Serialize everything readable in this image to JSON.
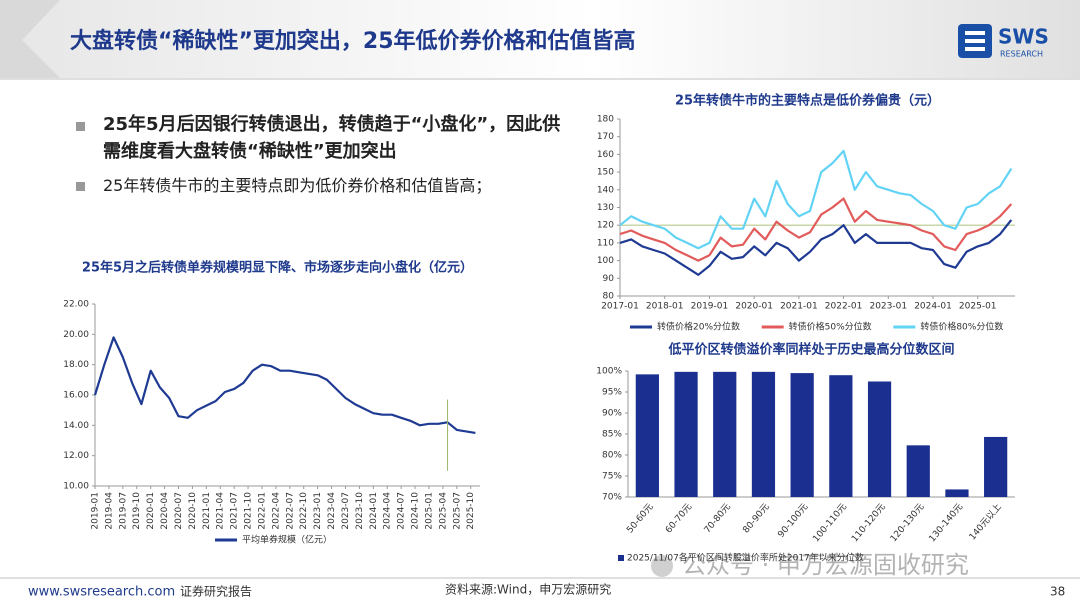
{
  "header": {
    "title": "大盘转债“稀缺性”更加突出，25年低价券价格和估值皆高",
    "logo": {
      "name": "SWS",
      "sub": "RESEARCH"
    }
  },
  "bullets": [
    "25年5月后因银行转债退出，转债趋于“小盘化”，因此供需维度看大盘转债“稀缺性”更加突出",
    "25年转债牛市的主要特点即为低价券价格和估值皆高；"
  ],
  "footer": {
    "site": "www.swsresearch.com",
    "kind": "证券研究报告",
    "source": "资料来源:Wind，申万宏源研究",
    "page": "38"
  },
  "watermark": "公众号 · 申万宏源固收研究",
  "chart_data": [
    {
      "type": "line",
      "title": "25年5月之后转债单券规模明显下降、市场逐步走向小盘化（亿元）",
      "x": [
        "2019-01",
        "2019-03",
        "2019-05",
        "2019-07",
        "2019-09",
        "2019-11",
        "2020-01",
        "2020-03",
        "2020-05",
        "2020-07",
        "2020-09",
        "2020-11",
        "2021-01",
        "2021-03",
        "2021-05",
        "2021-07",
        "2021-09",
        "2021-11",
        "2022-01",
        "2022-03",
        "2022-05",
        "2022-07",
        "2022-09",
        "2022-11",
        "2023-01",
        "2023-03",
        "2023-05",
        "2023-07",
        "2023-09",
        "2023-11",
        "2024-01",
        "2024-03",
        "2024-05",
        "2024-07",
        "2024-09",
        "2024-11",
        "2025-01",
        "2025-03",
        "2025-05",
        "2025-07",
        "2025-09",
        "2025-11"
      ],
      "series": [
        {
          "name": "平均单券规模（亿元）",
          "color": "#1f3a93",
          "values": [
            16.0,
            18.0,
            19.8,
            18.5,
            16.8,
            15.4,
            17.6,
            16.5,
            15.8,
            14.6,
            14.5,
            15.0,
            15.3,
            15.6,
            16.2,
            16.4,
            16.8,
            17.6,
            18.0,
            17.9,
            17.6,
            17.6,
            17.5,
            17.4,
            17.3,
            17.0,
            16.4,
            15.8,
            15.4,
            15.1,
            14.8,
            14.7,
            14.7,
            14.5,
            14.3,
            14.0,
            14.1,
            14.1,
            14.2,
            13.7,
            13.6,
            13.5
          ]
        }
      ],
      "vline": {
        "x": "2025-05",
        "y": [
          11.0,
          15.7
        ],
        "color": "#9ab86b"
      },
      "xlim": [
        "2019-01",
        "2025-12"
      ],
      "xticks": [
        "2019-01",
        "2019-04",
        "2019-07",
        "2019-10",
        "2020-01",
        "2020-04",
        "2020-07",
        "2020-10",
        "2021-01",
        "2021-04",
        "2021-07",
        "2021-10",
        "2022-01",
        "2022-04",
        "2022-07",
        "2022-10",
        "2023-01",
        "2023-04",
        "2023-07",
        "2023-10",
        "2024-01",
        "2024-04",
        "2024-07",
        "2024-10",
        "2025-01",
        "2025-04",
        "2025-07",
        "2025-10"
      ],
      "ylim": [
        10,
        22
      ],
      "yticks": [
        {
          "value": 10,
          "label": "10.00"
        },
        {
          "value": 12,
          "label": "12.00"
        },
        {
          "value": 14,
          "label": "14.00"
        },
        {
          "value": 16,
          "label": "16.00"
        },
        {
          "value": 18,
          "label": "18.00"
        },
        {
          "value": 20,
          "label": "20.00"
        },
        {
          "value": 22,
          "label": "22.00"
        }
      ]
    },
    {
      "type": "line",
      "title": "25年转债牛市的主要特点是低价券偏贵（元）",
      "x": [
        "2017-01",
        "2017-04",
        "2017-07",
        "2017-10",
        "2018-01",
        "2018-04",
        "2018-07",
        "2018-10",
        "2019-01",
        "2019-04",
        "2019-07",
        "2019-10",
        "2020-01",
        "2020-04",
        "2020-07",
        "2020-10",
        "2021-01",
        "2021-04",
        "2021-07",
        "2021-10",
        "2022-01",
        "2022-04",
        "2022-07",
        "2022-10",
        "2023-01",
        "2023-04",
        "2023-07",
        "2023-10",
        "2024-01",
        "2024-04",
        "2024-07",
        "2024-10",
        "2025-01",
        "2025-04",
        "2025-07",
        "2025-10"
      ],
      "series": [
        {
          "name": "转债价格20%分位数",
          "color": "#1f3a93",
          "values": [
            110,
            112,
            108,
            106,
            104,
            100,
            96,
            92,
            97,
            105,
            101,
            102,
            108,
            103,
            110,
            107,
            100,
            105,
            112,
            115,
            120,
            110,
            115,
            110,
            110,
            110,
            110,
            107,
            106,
            98,
            96,
            105,
            108,
            110,
            115,
            123
          ]
        },
        {
          "name": "转债价格50%分位数",
          "color": "#e25b5b",
          "values": [
            115,
            117,
            114,
            112,
            110,
            106,
            103,
            100,
            103,
            113,
            108,
            109,
            118,
            112,
            122,
            117,
            113,
            116,
            126,
            130,
            135,
            122,
            128,
            123,
            122,
            121,
            120,
            117,
            115,
            108,
            106,
            115,
            117,
            120,
            125,
            132
          ]
        },
        {
          "name": "转债价格80%分位数",
          "color": "#62d3f5",
          "values": [
            120,
            125,
            122,
            120,
            118,
            113,
            110,
            107,
            110,
            125,
            118,
            118,
            135,
            125,
            145,
            132,
            125,
            128,
            150,
            155,
            162,
            140,
            150,
            142,
            140,
            138,
            137,
            132,
            128,
            120,
            118,
            130,
            132,
            138,
            142,
            152
          ]
        }
      ],
      "hline": {
        "y": 120,
        "color": "#c9d6a8"
      },
      "xlim": [
        "2017-01",
        "2025-11"
      ],
      "xticks": [
        "2017-01",
        "2018-01",
        "2019-01",
        "2020-01",
        "2021-01",
        "2022-01",
        "2023-01",
        "2024-01",
        "2025-01"
      ],
      "ylim": [
        80,
        180
      ],
      "yticks": [
        80,
        90,
        100,
        110,
        120,
        130,
        140,
        150,
        160,
        170,
        180
      ]
    },
    {
      "type": "bar",
      "title": "低平价区转债溢价率同样处于历史最高分位数区间",
      "categories": [
        "50-60元",
        "60-70元",
        "70-80元",
        "80-90元",
        "90-100元",
        "100-110元",
        "110-120元",
        "120-130元",
        "130-140元",
        "140元以上"
      ],
      "series": [
        {
          "name": "2025/11/07各平价区间转股溢价率所处2017年以来分位数",
          "color": "#1a2f8f",
          "values": [
            99.2,
            99.8,
            99.8,
            99.8,
            99.5,
            99.0,
            97.5,
            82.3,
            71.8,
            84.3
          ]
        }
      ],
      "ylim": [
        70,
        100
      ],
      "yticks": [
        {
          "value": 70,
          "label": "70%"
        },
        {
          "value": 75,
          "label": "75%"
        },
        {
          "value": 80,
          "label": "80%"
        },
        {
          "value": 85,
          "label": "85%"
        },
        {
          "value": 90,
          "label": "90%"
        },
        {
          "value": 95,
          "label": "95%"
        },
        {
          "value": 100,
          "label": "100%"
        }
      ]
    }
  ]
}
